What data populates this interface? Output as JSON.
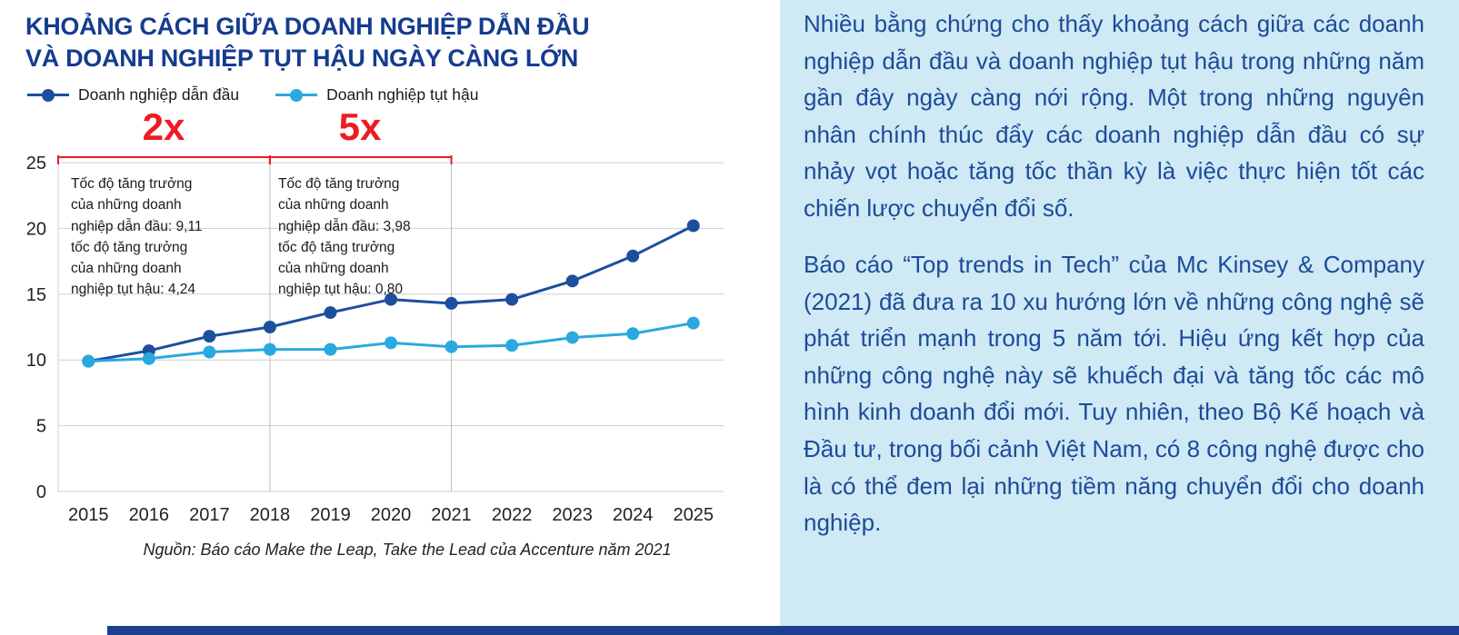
{
  "chart": {
    "title_line1": "KHOẢNG CÁCH GIỮA DOANH NGHIỆP DẪN ĐẦU",
    "title_line2": "VÀ DOANH NGHIỆP TỤT HẬU NGÀY CÀNG LỚN",
    "source": "Nguồn: Báo cáo Make the Leap, Take the Lead của Accenture năm 2021",
    "annotations": {
      "period1_text": "Tốc độ tăng trưởng\ncủa những doanh\nnghiệp dẫn đầu: 9,11\ntốc độ tăng trưởng\ncủa những doanh\nnghiệp tụt hậu: 4,24",
      "period2_text": "Tốc độ tăng trưởng\ncủa những doanh\nnghiệp dẫn đầu: 3,98\ntốc độ tăng trưởng\ncủa những doanh\nnghiệp tụt hậu: 0,80"
    }
  },
  "chart_data": {
    "type": "line",
    "title": "Khoảng cách giữa doanh nghiệp dẫn đầu và doanh nghiệp tụt hậu ngày càng lớn",
    "categories": [
      "2015",
      "2016",
      "2017",
      "2018",
      "2019",
      "2020",
      "2021",
      "2022",
      "2023",
      "2024",
      "2025"
    ],
    "series": [
      {
        "name": "Doanh nghiệp dẫn đầu",
        "color": "#1c4f9e",
        "values": [
          9.9,
          10.7,
          11.8,
          12.5,
          13.6,
          14.6,
          14.3,
          14.6,
          16.0,
          17.9,
          20.2
        ]
      },
      {
        "name": "Doanh nghiệp tụt hậu",
        "color": "#2aa9e0",
        "values": [
          9.9,
          10.1,
          10.6,
          10.8,
          10.8,
          11.3,
          11.0,
          11.1,
          11.7,
          12.0,
          12.8
        ]
      }
    ],
    "ylim": [
      0,
      25
    ],
    "yticks": [
      0,
      5,
      10,
      15,
      20,
      25
    ],
    "grid": true,
    "legend_position": "top",
    "separators": [
      "2018",
      "2021"
    ],
    "multiplier_spans": [
      {
        "label": "2x",
        "from": "2015",
        "to": "2018"
      },
      {
        "label": "5x",
        "from": "2018",
        "to": "2021"
      }
    ]
  },
  "article": {
    "paragraphs": [
      "Nhiều bằng chứng cho thấy khoảng cách giữa các doanh nghiệp dẫn đầu và doanh nghiệp tụt hậu trong những năm gần đây ngày càng nới rộng. Một trong những nguyên nhân chính thúc đẩy các doanh nghiệp dẫn đầu có sự nhảy vọt hoặc tăng tốc thần kỳ là việc thực hiện tốt các chiến lược chuyển đổi số.",
      "Báo cáo “Top trends in Tech” của Mc Kinsey & Company (2021) đã đưa ra 10 xu hướng lớn về những công nghệ sẽ phát triển mạnh trong 5 năm tới. Hiệu ứng kết hợp của những công nghệ này sẽ khuếch đại và tăng tốc các mô hình kinh doanh đổi mới. Tuy nhiên, theo Bộ Kế hoạch và Đầu tư, trong bối cảnh Việt Nam, có 8 công nghệ được cho là có thể đem lại những tiềm năng chuyển đổi cho doanh nghiệp."
    ]
  },
  "colors": {
    "accent_red": "#ed1c24",
    "title_navy": "#143c8f",
    "body_navy": "#1d4b98",
    "leader_blue": "#1c4f9e",
    "laggard_blue": "#2aa9e0",
    "panel_bg": "#cfe9f5",
    "footer_bar": "#1c3f8f",
    "grid_gray": "#cfcfcf"
  }
}
